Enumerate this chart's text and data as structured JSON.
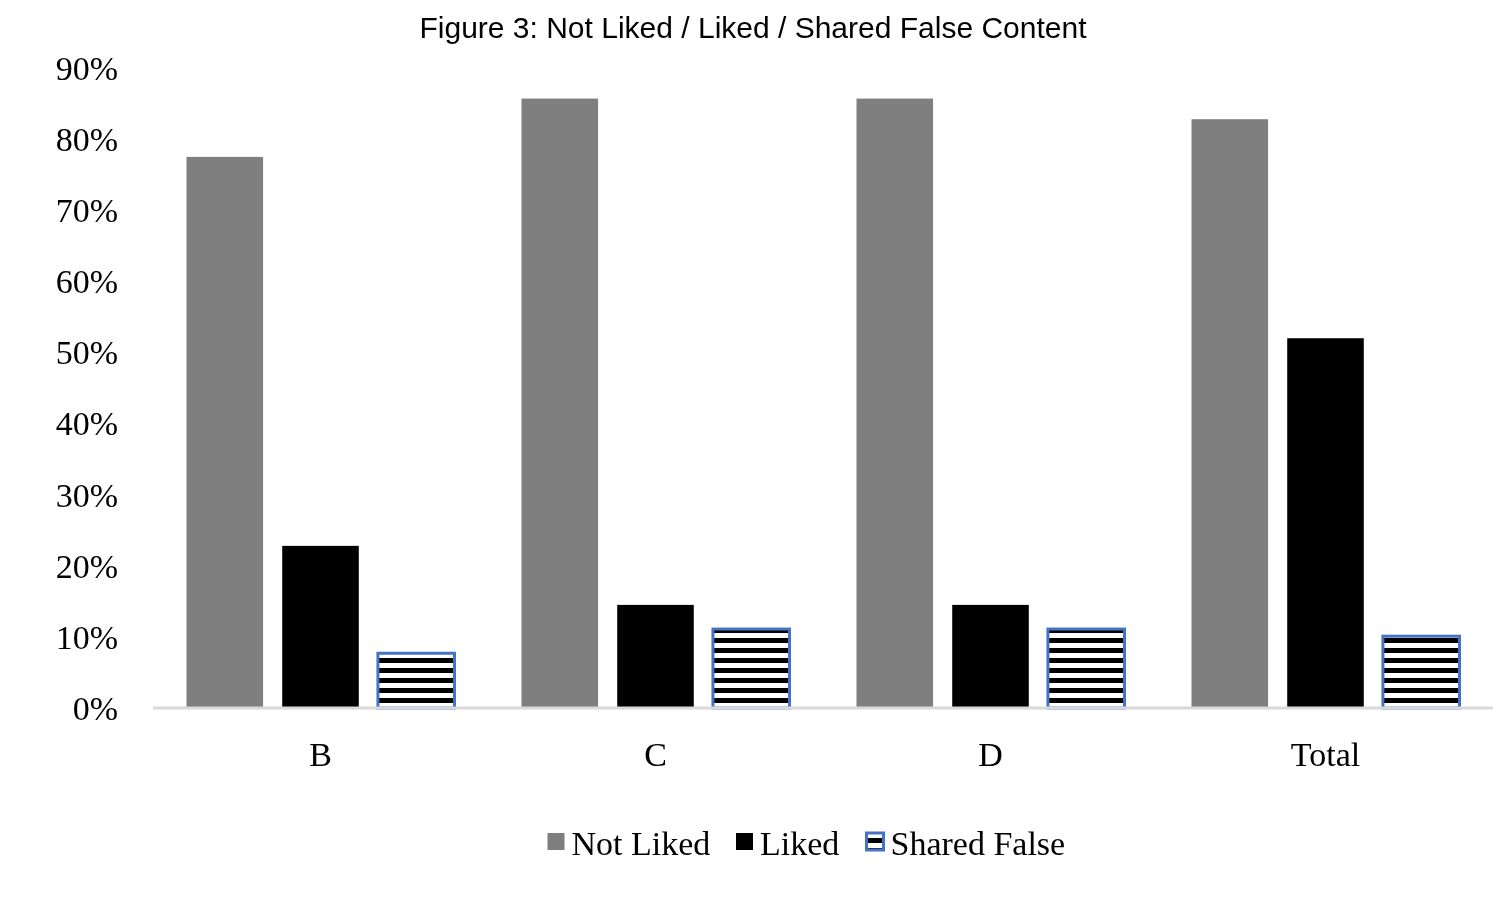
{
  "chart_data": {
    "type": "bar",
    "title": "Figure 3: Not Liked / Liked / Shared False Content",
    "categories": [
      "B",
      "C",
      "D",
      "Total"
    ],
    "series": [
      {
        "name": "Not Liked",
        "color": "#7f7f7f",
        "values": [
          77.5,
          85.7,
          85.7,
          82.8
        ]
      },
      {
        "name": "Liked",
        "color": "#000000",
        "values": [
          22.8,
          14.5,
          14.5,
          52
        ]
      },
      {
        "name": "Shared False",
        "color": "#4472c4",
        "values": [
          7.7,
          11.1,
          11.1,
          10.1
        ]
      }
    ],
    "ylim": [
      0,
      90
    ],
    "yticks": [
      {
        "value": 0,
        "label": "0%"
      },
      {
        "value": 10,
        "label": "10%"
      },
      {
        "value": 20,
        "label": "20%"
      },
      {
        "value": 30,
        "label": "30%"
      },
      {
        "value": 40,
        "label": "40%"
      },
      {
        "value": 50,
        "label": "50%"
      },
      {
        "value": 60,
        "label": "60%"
      },
      {
        "value": 70,
        "label": "70%"
      },
      {
        "value": 80,
        "label": "80%"
      },
      {
        "value": 90,
        "label": "90%"
      }
    ],
    "grid": false,
    "legend": "bottom"
  }
}
